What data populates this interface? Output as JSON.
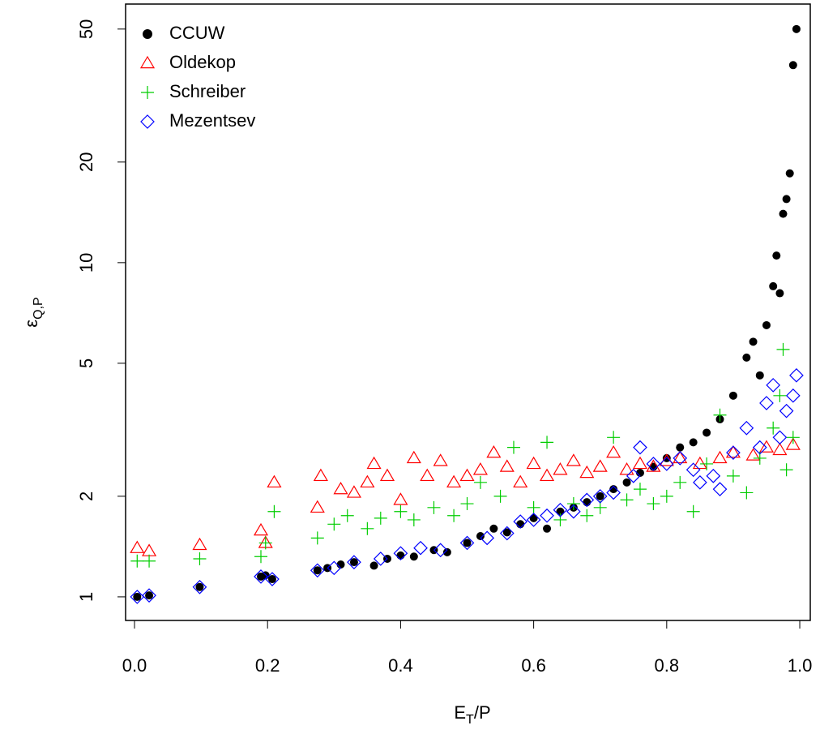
{
  "chart_data": {
    "type": "scatter",
    "log_y": true,
    "legend": "top-left",
    "xlabel": {
      "main": "E",
      "sub": "T",
      "rest": "/P"
    },
    "ylabel": {
      "main": "ε",
      "sub": "Q,P"
    },
    "xlim": [
      -0.0134,
      1.0158
    ],
    "ylim": [
      0.85,
      59.4
    ],
    "xticks": [
      {
        "value": 0,
        "label": "0.0"
      },
      0.2,
      0.4,
      0.6,
      0.8,
      {
        "value": 1,
        "label": "1.0"
      }
    ],
    "yticks": [
      1,
      2,
      5,
      10,
      20,
      50
    ],
    "series": [
      {
        "name": "CCUW",
        "color": "#000000",
        "marker": "circle",
        "x": [
          0.004,
          0.022,
          0.098,
          0.19,
          0.197,
          0.207,
          0.275,
          0.29,
          0.31,
          0.33,
          0.36,
          0.38,
          0.4,
          0.42,
          0.45,
          0.47,
          0.5,
          0.52,
          0.54,
          0.56,
          0.58,
          0.6,
          0.62,
          0.64,
          0.66,
          0.68,
          0.7,
          0.72,
          0.74,
          0.76,
          0.78,
          0.8,
          0.82,
          0.84,
          0.86,
          0.88,
          0.9,
          0.92,
          0.93,
          0.94,
          0.95,
          0.96,
          0.965,
          0.97,
          0.975,
          0.98,
          0.985,
          0.99,
          0.995
        ],
        "values": [
          1.0,
          1.01,
          1.07,
          1.15,
          1.16,
          1.13,
          1.2,
          1.22,
          1.25,
          1.27,
          1.24,
          1.3,
          1.33,
          1.32,
          1.38,
          1.36,
          1.45,
          1.52,
          1.6,
          1.56,
          1.65,
          1.72,
          1.6,
          1.8,
          1.85,
          1.92,
          2.0,
          2.1,
          2.2,
          2.35,
          2.45,
          2.6,
          2.8,
          2.9,
          3.1,
          3.4,
          4.0,
          5.2,
          5.8,
          4.6,
          6.5,
          8.5,
          10.5,
          8.1,
          14,
          15.5,
          18.5,
          39,
          50
        ]
      },
      {
        "name": "Oldekop",
        "color": "#ff0000",
        "marker": "triangle",
        "x": [
          0.004,
          0.022,
          0.098,
          0.19,
          0.197,
          0.21,
          0.275,
          0.28,
          0.31,
          0.33,
          0.35,
          0.36,
          0.38,
          0.4,
          0.42,
          0.44,
          0.46,
          0.48,
          0.5,
          0.52,
          0.54,
          0.56,
          0.58,
          0.6,
          0.62,
          0.64,
          0.66,
          0.68,
          0.7,
          0.72,
          0.74,
          0.76,
          0.78,
          0.8,
          0.82,
          0.85,
          0.88,
          0.9,
          0.93,
          0.95,
          0.97,
          0.99
        ],
        "values": [
          1.4,
          1.37,
          1.43,
          1.58,
          1.45,
          2.2,
          1.85,
          2.3,
          2.1,
          2.05,
          2.2,
          2.5,
          2.3,
          1.95,
          2.6,
          2.3,
          2.55,
          2.2,
          2.3,
          2.4,
          2.7,
          2.45,
          2.2,
          2.5,
          2.3,
          2.4,
          2.55,
          2.35,
          2.45,
          2.7,
          2.4,
          2.5,
          2.45,
          2.55,
          2.6,
          2.5,
          2.6,
          2.7,
          2.65,
          2.8,
          2.75,
          2.85
        ]
      },
      {
        "name": "Schreiber",
        "color": "#00cd00",
        "marker": "plus",
        "x": [
          0.004,
          0.022,
          0.098,
          0.19,
          0.197,
          0.21,
          0.275,
          0.3,
          0.32,
          0.35,
          0.37,
          0.4,
          0.42,
          0.45,
          0.48,
          0.5,
          0.52,
          0.55,
          0.57,
          0.6,
          0.62,
          0.64,
          0.66,
          0.68,
          0.7,
          0.72,
          0.74,
          0.76,
          0.78,
          0.8,
          0.82,
          0.84,
          0.86,
          0.88,
          0.9,
          0.92,
          0.94,
          0.96,
          0.97,
          0.975,
          0.98,
          0.99
        ],
        "values": [
          1.28,
          1.28,
          1.3,
          1.32,
          1.45,
          1.8,
          1.5,
          1.65,
          1.75,
          1.6,
          1.72,
          1.8,
          1.7,
          1.85,
          1.75,
          1.9,
          2.2,
          2.0,
          2.8,
          1.85,
          2.9,
          1.7,
          1.9,
          1.75,
          1.85,
          3.0,
          1.95,
          2.1,
          1.9,
          2.0,
          2.2,
          1.8,
          2.5,
          3.5,
          2.3,
          2.05,
          2.6,
          3.2,
          4.0,
          5.5,
          2.4,
          3.0
        ]
      },
      {
        "name": "Mezentsev",
        "color": "#0000ff",
        "marker": "diamond",
        "x": [
          0.004,
          0.022,
          0.098,
          0.19,
          0.207,
          0.275,
          0.3,
          0.33,
          0.37,
          0.4,
          0.43,
          0.46,
          0.5,
          0.53,
          0.56,
          0.58,
          0.6,
          0.62,
          0.64,
          0.66,
          0.68,
          0.7,
          0.72,
          0.75,
          0.76,
          0.78,
          0.8,
          0.82,
          0.84,
          0.85,
          0.87,
          0.88,
          0.9,
          0.92,
          0.94,
          0.95,
          0.96,
          0.97,
          0.98,
          0.99,
          0.995
        ],
        "values": [
          1.0,
          1.01,
          1.07,
          1.15,
          1.13,
          1.2,
          1.22,
          1.27,
          1.3,
          1.35,
          1.4,
          1.38,
          1.45,
          1.5,
          1.55,
          1.68,
          1.7,
          1.75,
          1.82,
          1.8,
          1.95,
          2.0,
          2.05,
          2.3,
          2.8,
          2.5,
          2.5,
          2.6,
          2.4,
          2.2,
          2.3,
          2.1,
          2.7,
          3.2,
          2.8,
          3.8,
          4.3,
          3.0,
          3.6,
          4.0,
          4.6
        ]
      }
    ]
  }
}
